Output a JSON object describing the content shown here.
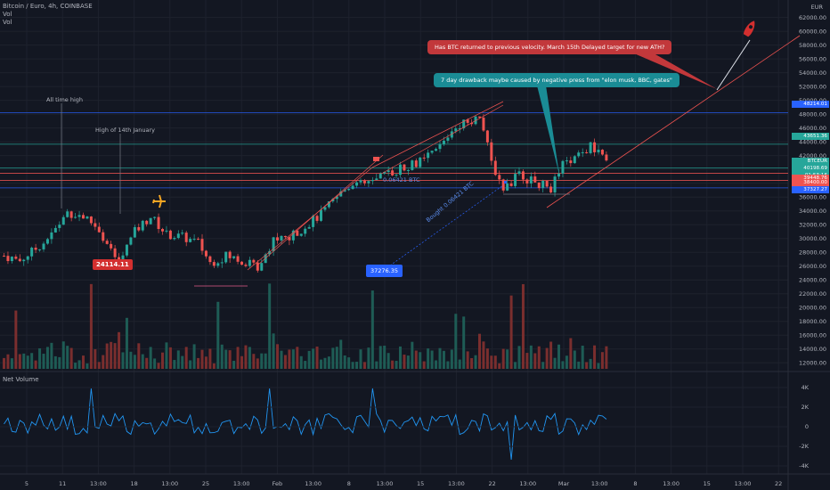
{
  "header": {
    "symbol_title": "Bitcoin / Euro, 4h, COINBASE",
    "vol_label_1": "Vol",
    "vol_label_2": "Vol",
    "net_volume_label": "Net Volume",
    "currency": "EUR"
  },
  "annotations": {
    "all_time_high": "All time high",
    "high_14_jan": "High of 14th January",
    "callout_red": "Has BTC returned to previous velocity. March 15th Delayed target for new ATH?",
    "callout_teal": "7 day drawback maybe caused by negative press from \"elon musk, BBC, gates\"",
    "buy_label_1": "Bought 0.06421 BTC",
    "buy_label_2": "0.06421 BTC",
    "price_tag_red": "24114.11",
    "price_tag_blue": "37276.35"
  },
  "price_tags": [
    {
      "text": "48214.01",
      "color": "#2962ff"
    },
    {
      "text": "43651.36",
      "color": "#26a69a"
    },
    {
      "text": "BTCEUR",
      "color": "#26a69a"
    },
    {
      "text": "40198.69",
      "color": "#26a69a"
    },
    {
      "text": "01:53:16",
      "color": "#26a69a"
    },
    {
      "text": "39448.76",
      "color": "#ef5350"
    },
    {
      "text": "38400.00",
      "color": "#ef5350"
    },
    {
      "text": "37327.27",
      "color": "#2962ff"
    }
  ],
  "chart_data": {
    "type": "line",
    "price_axis_ticks": [
      12000,
      14000,
      16000,
      18000,
      20000,
      22000,
      24000,
      26000,
      28000,
      30000,
      32000,
      34000,
      36000,
      38000,
      40000,
      42000,
      44000,
      46000,
      48000,
      50000,
      52000,
      54000,
      56000,
      58000,
      60000,
      62000
    ],
    "price_axis_range": [
      11000,
      63500
    ],
    "x_tick_labels": [
      "5",
      "11",
      "13:00",
      "18",
      "13:00",
      "25",
      "13:00",
      "Feb",
      "13:00",
      "8",
      "13:00",
      "15",
      "13:00",
      "22",
      "13:00",
      "Mar",
      "13:00",
      "8",
      "13:00",
      "15",
      "13:00",
      "22"
    ],
    "net_volume_ticks": [
      "4K",
      "2K",
      "0",
      "-2K",
      "-4K"
    ],
    "price_series": [
      [
        0,
        27500
      ],
      [
        4,
        26800
      ],
      [
        8,
        28500
      ],
      [
        12,
        30500
      ],
      [
        16,
        33800
      ],
      [
        20,
        33200
      ],
      [
        24,
        31500
      ],
      [
        27,
        28000
      ],
      [
        29,
        26600
      ],
      [
        33,
        31000
      ],
      [
        37,
        33200
      ],
      [
        41,
        30600
      ],
      [
        45,
        30200
      ],
      [
        49,
        29400
      ],
      [
        52,
        26500
      ],
      [
        56,
        27500
      ],
      [
        60,
        26800
      ],
      [
        64,
        25900
      ],
      [
        68,
        29800
      ],
      [
        72,
        30100
      ],
      [
        76,
        31800
      ],
      [
        80,
        33500
      ],
      [
        84,
        36000
      ],
      [
        88,
        38200
      ],
      [
        90,
        37800
      ],
      [
        94,
        38400
      ],
      [
        98,
        39700
      ],
      [
        102,
        40600
      ],
      [
        106,
        41300
      ],
      [
        110,
        43400
      ],
      [
        114,
        46400
      ],
      [
        118,
        47200
      ],
      [
        120,
        48000
      ],
      [
        123,
        41000
      ],
      [
        126,
        37300
      ],
      [
        130,
        39200
      ],
      [
        134,
        38100
      ],
      [
        138,
        37300
      ],
      [
        141,
        40600
      ],
      [
        145,
        41900
      ],
      [
        148,
        43300
      ],
      [
        151,
        41800
      ],
      [
        153,
        40200
      ]
    ],
    "horizontal_levels": [
      {
        "price": 48214.01,
        "color": "#2962ff"
      },
      {
        "price": 43651.36,
        "color": "#26a69a"
      },
      {
        "price": 40198.69,
        "color": "#26a69a"
      },
      {
        "price": 39448.76,
        "color": "#ef5350"
      },
      {
        "price": 38400.0,
        "color": "#ef5350"
      },
      {
        "price": 37327.27,
        "color": "#2962ff"
      }
    ],
    "xlabel": "",
    "ylabel": "",
    "grid": true
  }
}
